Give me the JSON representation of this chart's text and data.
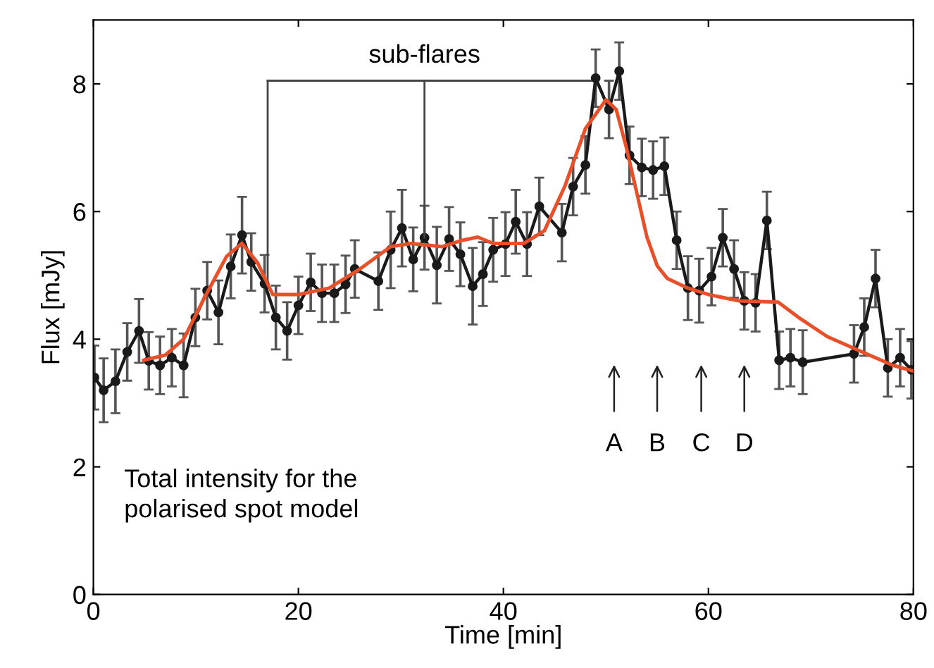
{
  "chart_data": {
    "type": "line",
    "xlabel": "Time [min]",
    "ylabel": "Flux [mJy]",
    "xlim": [
      0,
      80
    ],
    "ylim": [
      0,
      9
    ],
    "xticks": [
      0,
      20,
      40,
      60,
      80
    ],
    "yticks": [
      0,
      2,
      4,
      6,
      8
    ],
    "grid": false,
    "series": [
      {
        "color": "#1a1a1a",
        "marker": "circle",
        "x": [
          0.1,
          1.0,
          2.15,
          3.3,
          4.45,
          5.4,
          6.5,
          7.65,
          8.8,
          9.95,
          11.1,
          12.2,
          13.4,
          14.5,
          15.4,
          16.7,
          17.8,
          18.9,
          20.0,
          21.2,
          22.3,
          23.5,
          24.6,
          25.5,
          27.8,
          29.0,
          30.1,
          31.2,
          32.3,
          33.5,
          34.7,
          35.8,
          37.0,
          38.0,
          39.0,
          40.2,
          41.2,
          42.3,
          43.5,
          45.7,
          46.8,
          48.0,
          49.0,
          50.3,
          51.3,
          52.3,
          53.5,
          54.6,
          55.7,
          56.9,
          58.0,
          59.1,
          60.3,
          61.4,
          62.5,
          63.5,
          64.6,
          65.7,
          66.9,
          68.0,
          69.2,
          74.2,
          75.2,
          76.3,
          77.5,
          78.7,
          79.8
        ],
        "values": [
          3.4,
          3.2,
          3.34,
          3.8,
          4.13,
          3.66,
          3.59,
          3.71,
          3.59,
          4.34,
          4.76,
          4.42,
          5.14,
          5.63,
          5.21,
          4.87,
          4.34,
          4.13,
          4.53,
          4.89,
          4.72,
          4.72,
          4.86,
          5.1,
          4.91,
          5.4,
          5.74,
          5.25,
          5.59,
          5.16,
          5.57,
          5.33,
          4.83,
          5.02,
          5.4,
          5.49,
          5.84,
          5.49,
          6.08,
          5.67,
          6.39,
          6.73,
          8.09,
          7.6,
          8.2,
          6.88,
          6.69,
          6.65,
          6.71,
          5.55,
          4.8,
          4.76,
          4.98,
          5.59,
          5.1,
          4.6,
          4.57,
          5.86,
          3.67,
          3.71,
          3.64,
          3.77,
          4.19,
          4.95,
          3.55,
          3.71,
          3.52
        ],
        "errors": [
          0.5,
          0.5,
          0.5,
          0.45,
          0.5,
          0.45,
          0.45,
          0.45,
          0.5,
          0.45,
          0.45,
          0.5,
          0.5,
          0.6,
          0.45,
          0.45,
          0.5,
          0.45,
          0.45,
          0.45,
          0.45,
          0.45,
          0.45,
          0.45,
          0.45,
          0.6,
          0.6,
          0.5,
          0.5,
          0.6,
          0.5,
          0.5,
          0.6,
          0.5,
          0.5,
          0.5,
          0.5,
          0.5,
          0.45,
          0.45,
          0.45,
          0.45,
          0.45,
          0.45,
          0.45,
          0.45,
          0.45,
          0.45,
          0.45,
          0.45,
          0.5,
          0.5,
          0.45,
          0.45,
          0.45,
          0.45,
          0.45,
          0.45,
          0.45,
          0.45,
          0.5,
          0.45,
          0.45,
          0.45,
          0.45,
          0.45,
          0.45
        ]
      },
      {
        "color": "#e8502a",
        "marker": "none",
        "x": [
          4.9,
          7,
          8.8,
          11,
          13,
          14.5,
          16,
          17.5,
          20,
          23,
          26,
          29,
          31,
          34,
          36,
          37.5,
          39,
          42,
          44,
          46,
          48,
          50,
          51,
          52,
          53,
          54,
          55,
          56,
          58,
          60,
          63,
          66.8,
          68.8,
          71.6,
          74.3,
          78,
          80
        ],
        "values": [
          3.67,
          3.75,
          4.0,
          4.7,
          5.3,
          5.5,
          5.2,
          4.7,
          4.7,
          4.8,
          5.1,
          5.45,
          5.5,
          5.45,
          5.55,
          5.6,
          5.5,
          5.5,
          5.7,
          6.4,
          7.3,
          7.75,
          7.6,
          7.0,
          6.3,
          5.6,
          5.15,
          4.95,
          4.8,
          4.7,
          4.6,
          4.58,
          4.34,
          4.04,
          3.85,
          3.59,
          3.5
        ]
      }
    ],
    "annotations": [
      {
        "text": "sub-flares",
        "x": 32.3,
        "y": 5.59
      },
      "A",
      "B",
      "C",
      "D",
      "Total intensity for the\npolarised spot model"
    ]
  }
}
